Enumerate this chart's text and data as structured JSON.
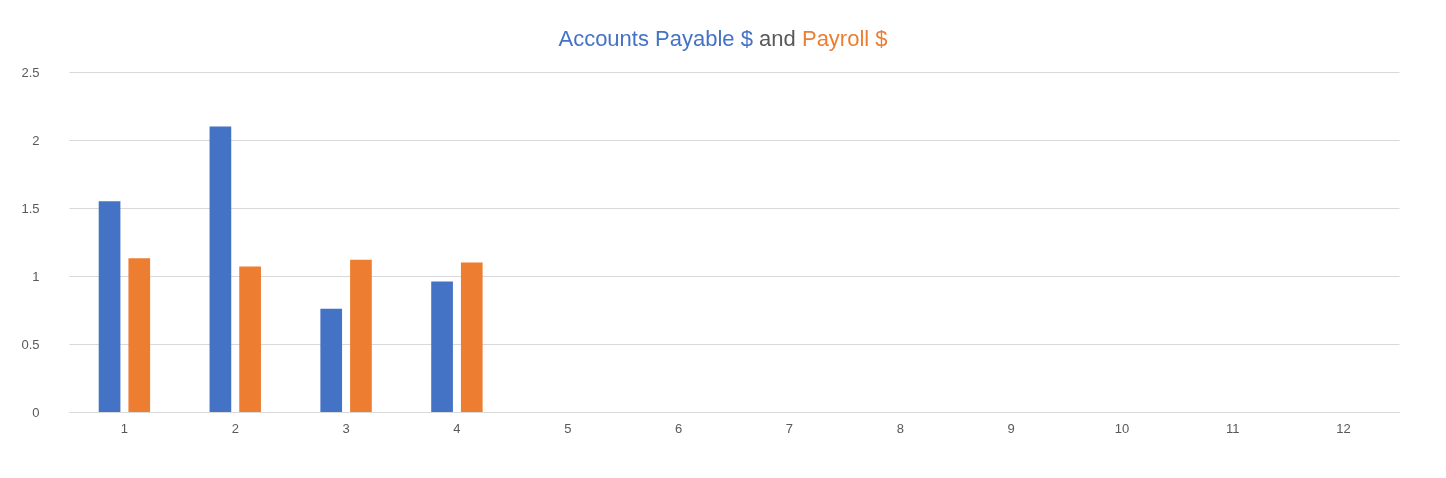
{
  "chart_data": {
    "type": "bar",
    "annotations": [
      "and"
    ],
    "categories": [
      "1",
      "2",
      "3",
      "4",
      "5",
      "6",
      "7",
      "8",
      "9",
      "10",
      "11",
      "12"
    ],
    "series": [
      {
        "name": "Accounts Payable $",
        "color": "#4472c4",
        "values": [
          1.55,
          2.1,
          0.76,
          0.96,
          null,
          null,
          null,
          null,
          null,
          null,
          null,
          null
        ]
      },
      {
        "name": "Payroll $",
        "color": "#ed7d31",
        "values": [
          1.13,
          1.07,
          1.12,
          1.1,
          null,
          null,
          null,
          null,
          null,
          null,
          null,
          null
        ]
      }
    ],
    "ylim": [
      0,
      2.5
    ],
    "yticks": [
      0,
      0.5,
      1,
      1.5,
      2,
      2.5
    ],
    "grid": "y",
    "legend": false
  }
}
